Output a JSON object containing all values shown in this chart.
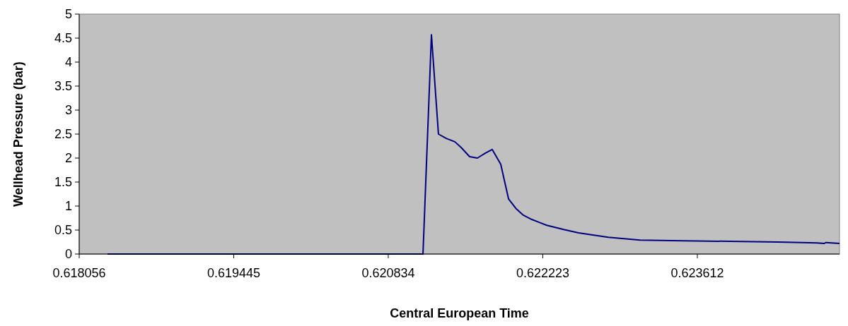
{
  "chart_data": {
    "type": "line",
    "xlabel": "Central European Time",
    "ylabel": "Wellhead Pressure (bar)",
    "xlim": [
      0.618056,
      0.62489
    ],
    "xticks": [
      0.618056,
      0.619445,
      0.620834,
      0.622223,
      0.623612
    ],
    "ylim": [
      0,
      5
    ],
    "yticks": [
      0,
      0.5,
      1,
      1.5,
      2,
      2.5,
      3,
      3.5,
      4,
      4.5,
      5
    ],
    "grid": false,
    "marker": "none",
    "line_style": "solid",
    "series": [
      {
        "color": "#000080",
        "x": [
          0.61831,
          0.620936,
          0.621146,
          0.621222,
          0.621285,
          0.621355,
          0.621432,
          0.621489,
          0.621565,
          0.621635,
          0.621705,
          0.621768,
          0.621845,
          0.621915,
          0.621985,
          0.622048,
          0.622124,
          0.622258,
          0.622411,
          0.622544,
          0.622811,
          0.623097,
          0.623383,
          0.624019,
          0.624337,
          0.624686,
          0.62475,
          0.624769,
          0.62489
        ],
        "values": [
          0,
          0,
          0,
          4.57,
          2.5,
          2.41,
          2.34,
          2.22,
          2.03,
          2.0,
          2.1,
          2.18,
          1.87,
          1.15,
          0.94,
          0.81,
          0.72,
          0.6,
          0.51,
          0.44,
          0.35,
          0.29,
          0.28,
          0.26,
          0.25,
          0.23,
          0.22,
          0.24,
          0.22
        ]
      }
    ]
  }
}
